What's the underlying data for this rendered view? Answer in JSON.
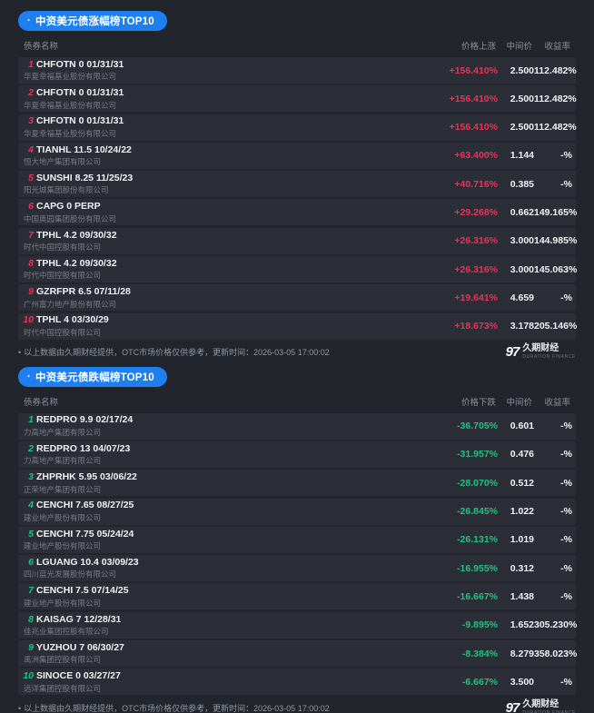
{
  "colors": {
    "accent_up": "#ef3056",
    "accent_down": "#1ec47c",
    "pill_blue": "#1e80f0",
    "page_bg": "#22252b",
    "row_bg": "#2b2e37"
  },
  "sections": [
    {
      "bullet": "·",
      "title": "中资美元债涨幅榜TOP10",
      "direction": "up",
      "columns": {
        "name": "债券名称",
        "change": "价格上涨",
        "mid": "中间价",
        "yield": "收益率"
      },
      "rows": [
        {
          "rank": "1",
          "name": "CHFOTN 0 01/31/31",
          "company": "华夏幸福基业股份有限公司",
          "change": "+156.410%",
          "mid": "2.500",
          "yield": "112.482%"
        },
        {
          "rank": "2",
          "name": "CHFOTN 0 01/31/31",
          "company": "华夏幸福基业股份有限公司",
          "change": "+156.410%",
          "mid": "2.500",
          "yield": "112.482%"
        },
        {
          "rank": "3",
          "name": "CHFOTN 0 01/31/31",
          "company": "华夏幸福基业股份有限公司",
          "change": "+156.410%",
          "mid": "2.500",
          "yield": "112.482%"
        },
        {
          "rank": "4",
          "name": "TIANHL 11.5 10/24/22",
          "company": "恒大地产集团有限公司",
          "change": "+63.400%",
          "mid": "1.144",
          "yield": "-%"
        },
        {
          "rank": "5",
          "name": "SUNSHI 8.25 11/25/23",
          "company": "阳光城集团股份有限公司",
          "change": "+40.716%",
          "mid": "0.385",
          "yield": "-%"
        },
        {
          "rank": "6",
          "name": "CAPG 0 PERP",
          "company": "中国奥园集团股份有限公司",
          "change": "+29.268%",
          "mid": "0.662",
          "yield": "149.165%"
        },
        {
          "rank": "7",
          "name": "TPHL 4.2 09/30/32",
          "company": "时代中国控股有限公司",
          "change": "+26.316%",
          "mid": "3.000",
          "yield": "144.985%"
        },
        {
          "rank": "8",
          "name": "TPHL 4.2 09/30/32",
          "company": "时代中国控股有限公司",
          "change": "+26.316%",
          "mid": "3.000",
          "yield": "145.063%"
        },
        {
          "rank": "9",
          "name": "GZRFPR 6.5 07/11/28",
          "company": "广州富力地产股份有限公司",
          "change": "+19.641%",
          "mid": "4.659",
          "yield": "-%"
        },
        {
          "rank": "10",
          "name": "TPHL 4 03/30/29",
          "company": "时代中国控股有限公司",
          "change": "+18.673%",
          "mid": "3.178",
          "yield": "205.146%"
        }
      ]
    },
    {
      "bullet": "·",
      "title": "中资美元债跌幅榜TOP10",
      "direction": "down",
      "columns": {
        "name": "债券名称",
        "change": "价格下跌",
        "mid": "中间价",
        "yield": "收益率"
      },
      "rows": [
        {
          "rank": "1",
          "name": "REDPRO 9.9 02/17/24",
          "company": "力高地产集团有限公司",
          "change": "-36.705%",
          "mid": "0.601",
          "yield": "-%"
        },
        {
          "rank": "2",
          "name": "REDPRO 13 04/07/23",
          "company": "力高地产集团有限公司",
          "change": "-31.957%",
          "mid": "0.476",
          "yield": "-%"
        },
        {
          "rank": "3",
          "name": "ZHPRHK 5.95 03/06/22",
          "company": "正荣地产集团有限公司",
          "change": "-28.070%",
          "mid": "0.512",
          "yield": "-%"
        },
        {
          "rank": "4",
          "name": "CENCHI 7.65 08/27/25",
          "company": "建业地产股份有限公司",
          "change": "-26.845%",
          "mid": "1.022",
          "yield": "-%"
        },
        {
          "rank": "5",
          "name": "CENCHI 7.75 05/24/24",
          "company": "建业地产股份有限公司",
          "change": "-26.131%",
          "mid": "1.019",
          "yield": "-%"
        },
        {
          "rank": "6",
          "name": "LGUANG 10.4 03/09/23",
          "company": "四川蓝光发展股份有限公司",
          "change": "-16.955%",
          "mid": "0.312",
          "yield": "-%"
        },
        {
          "rank": "7",
          "name": "CENCHI 7.5 07/14/25",
          "company": "建业地产股份有限公司",
          "change": "-16.667%",
          "mid": "1.438",
          "yield": "-%"
        },
        {
          "rank": "8",
          "name": "KAISAG 7 12/28/31",
          "company": "佳兆业集团控股有限公司",
          "change": "-9.895%",
          "mid": "1.652",
          "yield": "305.230%"
        },
        {
          "rank": "9",
          "name": "YUZHOU 7 06/30/27",
          "company": "禹洲集团控股有限公司",
          "change": "-8.384%",
          "mid": "8.279",
          "yield": "358.023%"
        },
        {
          "rank": "10",
          "name": "SINOCE 0 03/27/27",
          "company": "远洋集团控股有限公司",
          "change": "-6.667%",
          "mid": "3.500",
          "yield": "-%"
        }
      ]
    }
  ],
  "footer": {
    "bullet": "•",
    "text": "以上数据由久期财经提供，OTC市场价格仅供参考，更新时间：2026-03-05 17:00:02",
    "logo": {
      "mark": "97",
      "name": "久期财经",
      "subtext": "DURATION FINANCE"
    }
  }
}
